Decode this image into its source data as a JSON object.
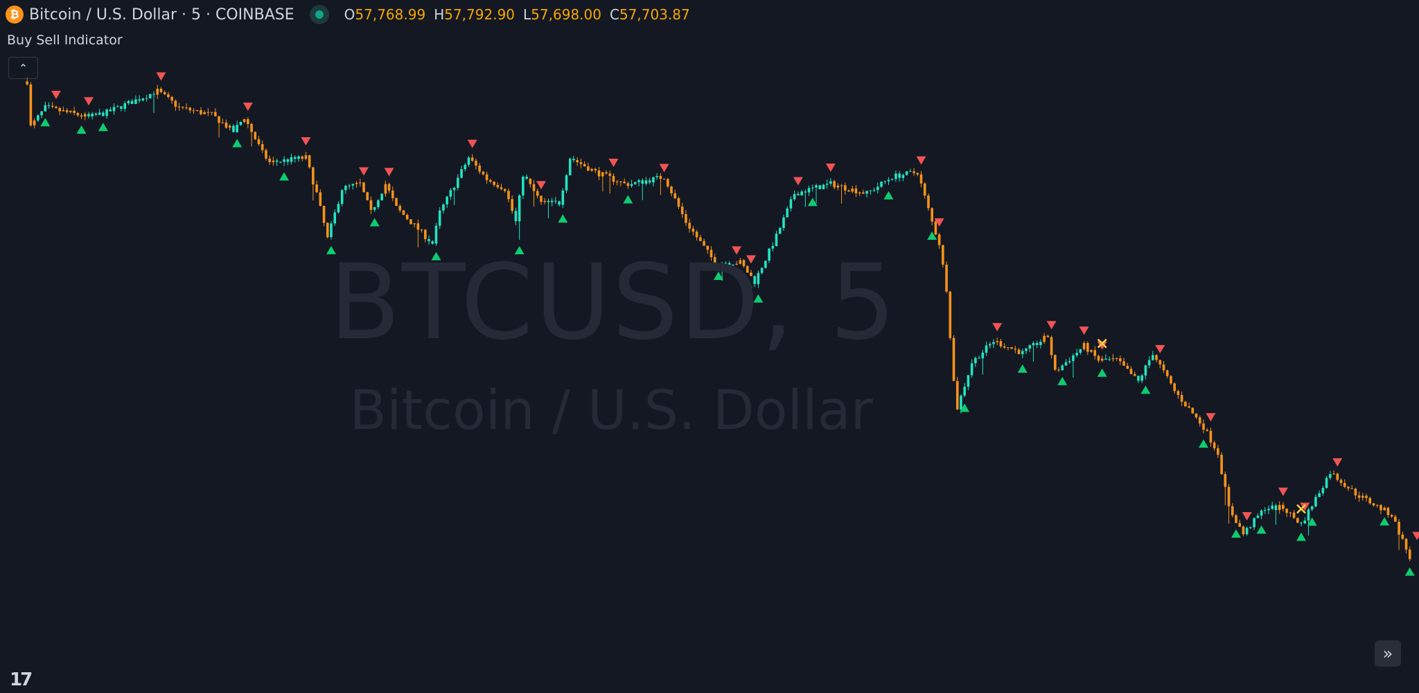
{
  "header": {
    "symbol_title": "Bitcoin / U.S. Dollar · 5 · COINBASE",
    "coin_glyph": "₿",
    "ohlc": [
      {
        "k": "O",
        "v": "57,768.99"
      },
      {
        "k": "H",
        "v": "57,792.90"
      },
      {
        "k": "L",
        "v": "57,698.00"
      },
      {
        "k": "C",
        "v": "57,703.87"
      }
    ]
  },
  "indicator": {
    "name": "Buy Sell Indicator",
    "collapse_icon": "chevron-up-icon"
  },
  "watermark": {
    "line1": "BTCUSD, 5",
    "line2": "Bitcoin / U.S. Dollar"
  },
  "controls": {
    "scroll_to_latest_icon": "double-chevron-right-icon",
    "logo": "TV"
  },
  "colors": {
    "background": "#141823",
    "bull": "#22e4c0",
    "bear": "#f7931a",
    "buy": "#0ecb6f",
    "sell": "#f05454",
    "cross": "#f5d442",
    "dot": "#f5d442"
  },
  "chart_data": {
    "type": "candlestick",
    "interval": "5",
    "price_path": [
      [
        0,
        59700
      ],
      [
        1,
        59510
      ],
      [
        5,
        59590
      ],
      [
        17,
        59550
      ],
      [
        22,
        59570
      ],
      [
        36,
        59660
      ],
      [
        42,
        59590
      ],
      [
        51,
        59560
      ],
      [
        57,
        59490
      ],
      [
        60,
        59550
      ],
      [
        65,
        59400
      ],
      [
        67,
        59360
      ],
      [
        77,
        59380
      ],
      [
        80,
        59230
      ],
      [
        83,
        59040
      ],
      [
        87,
        59250
      ],
      [
        92,
        59270
      ],
      [
        95,
        59150
      ],
      [
        99,
        59270
      ],
      [
        102,
        59170
      ],
      [
        112,
        59020
      ],
      [
        114,
        59150
      ],
      [
        122,
        59380
      ],
      [
        127,
        59290
      ],
      [
        132,
        59250
      ],
      [
        135,
        59110
      ],
      [
        137,
        59310
      ],
      [
        142,
        59190
      ],
      [
        147,
        59190
      ],
      [
        150,
        59380
      ],
      [
        157,
        59320
      ],
      [
        165,
        59270
      ],
      [
        167,
        59270
      ],
      [
        176,
        59300
      ],
      [
        182,
        59110
      ],
      [
        190,
        58940
      ],
      [
        197,
        58940
      ],
      [
        201,
        58860
      ],
      [
        207,
        59050
      ],
      [
        212,
        59230
      ],
      [
        222,
        59270
      ],
      [
        232,
        59230
      ],
      [
        239,
        59300
      ],
      [
        246,
        59320
      ],
      [
        250,
        59110
      ],
      [
        252,
        59020
      ],
      [
        254,
        58830
      ],
      [
        256,
        58440
      ],
      [
        257,
        58330
      ],
      [
        261,
        58520
      ],
      [
        267,
        58610
      ],
      [
        275,
        58560
      ],
      [
        282,
        58630
      ],
      [
        284,
        58480
      ],
      [
        292,
        58590
      ],
      [
        296,
        58530
      ],
      [
        301,
        58530
      ],
      [
        307,
        58440
      ],
      [
        311,
        58560
      ],
      [
        317,
        58400
      ],
      [
        325,
        58250
      ],
      [
        329,
        58140
      ],
      [
        332,
        57910
      ],
      [
        336,
        57800
      ],
      [
        342,
        57910
      ],
      [
        347,
        57910
      ],
      [
        352,
        57840
      ],
      [
        360,
        58060
      ],
      [
        367,
        57970
      ],
      [
        377,
        57880
      ],
      [
        382,
        57700
      ]
    ],
    "sell_signals": [
      8,
      17,
      37,
      61,
      77,
      93,
      100,
      123,
      142,
      162,
      176,
      196,
      200,
      213,
      222,
      247,
      252,
      268,
      283,
      292,
      297,
      313,
      327,
      337,
      347,
      353,
      362,
      384
    ],
    "buy_signals": [
      5,
      15,
      21,
      58,
      71,
      84,
      96,
      113,
      136,
      148,
      166,
      191,
      199,
      202,
      217,
      238,
      250,
      259,
      275,
      286,
      297,
      309,
      325,
      334,
      341,
      352,
      355,
      375,
      382
    ],
    "cross_signals": [
      297,
      352
    ]
  }
}
